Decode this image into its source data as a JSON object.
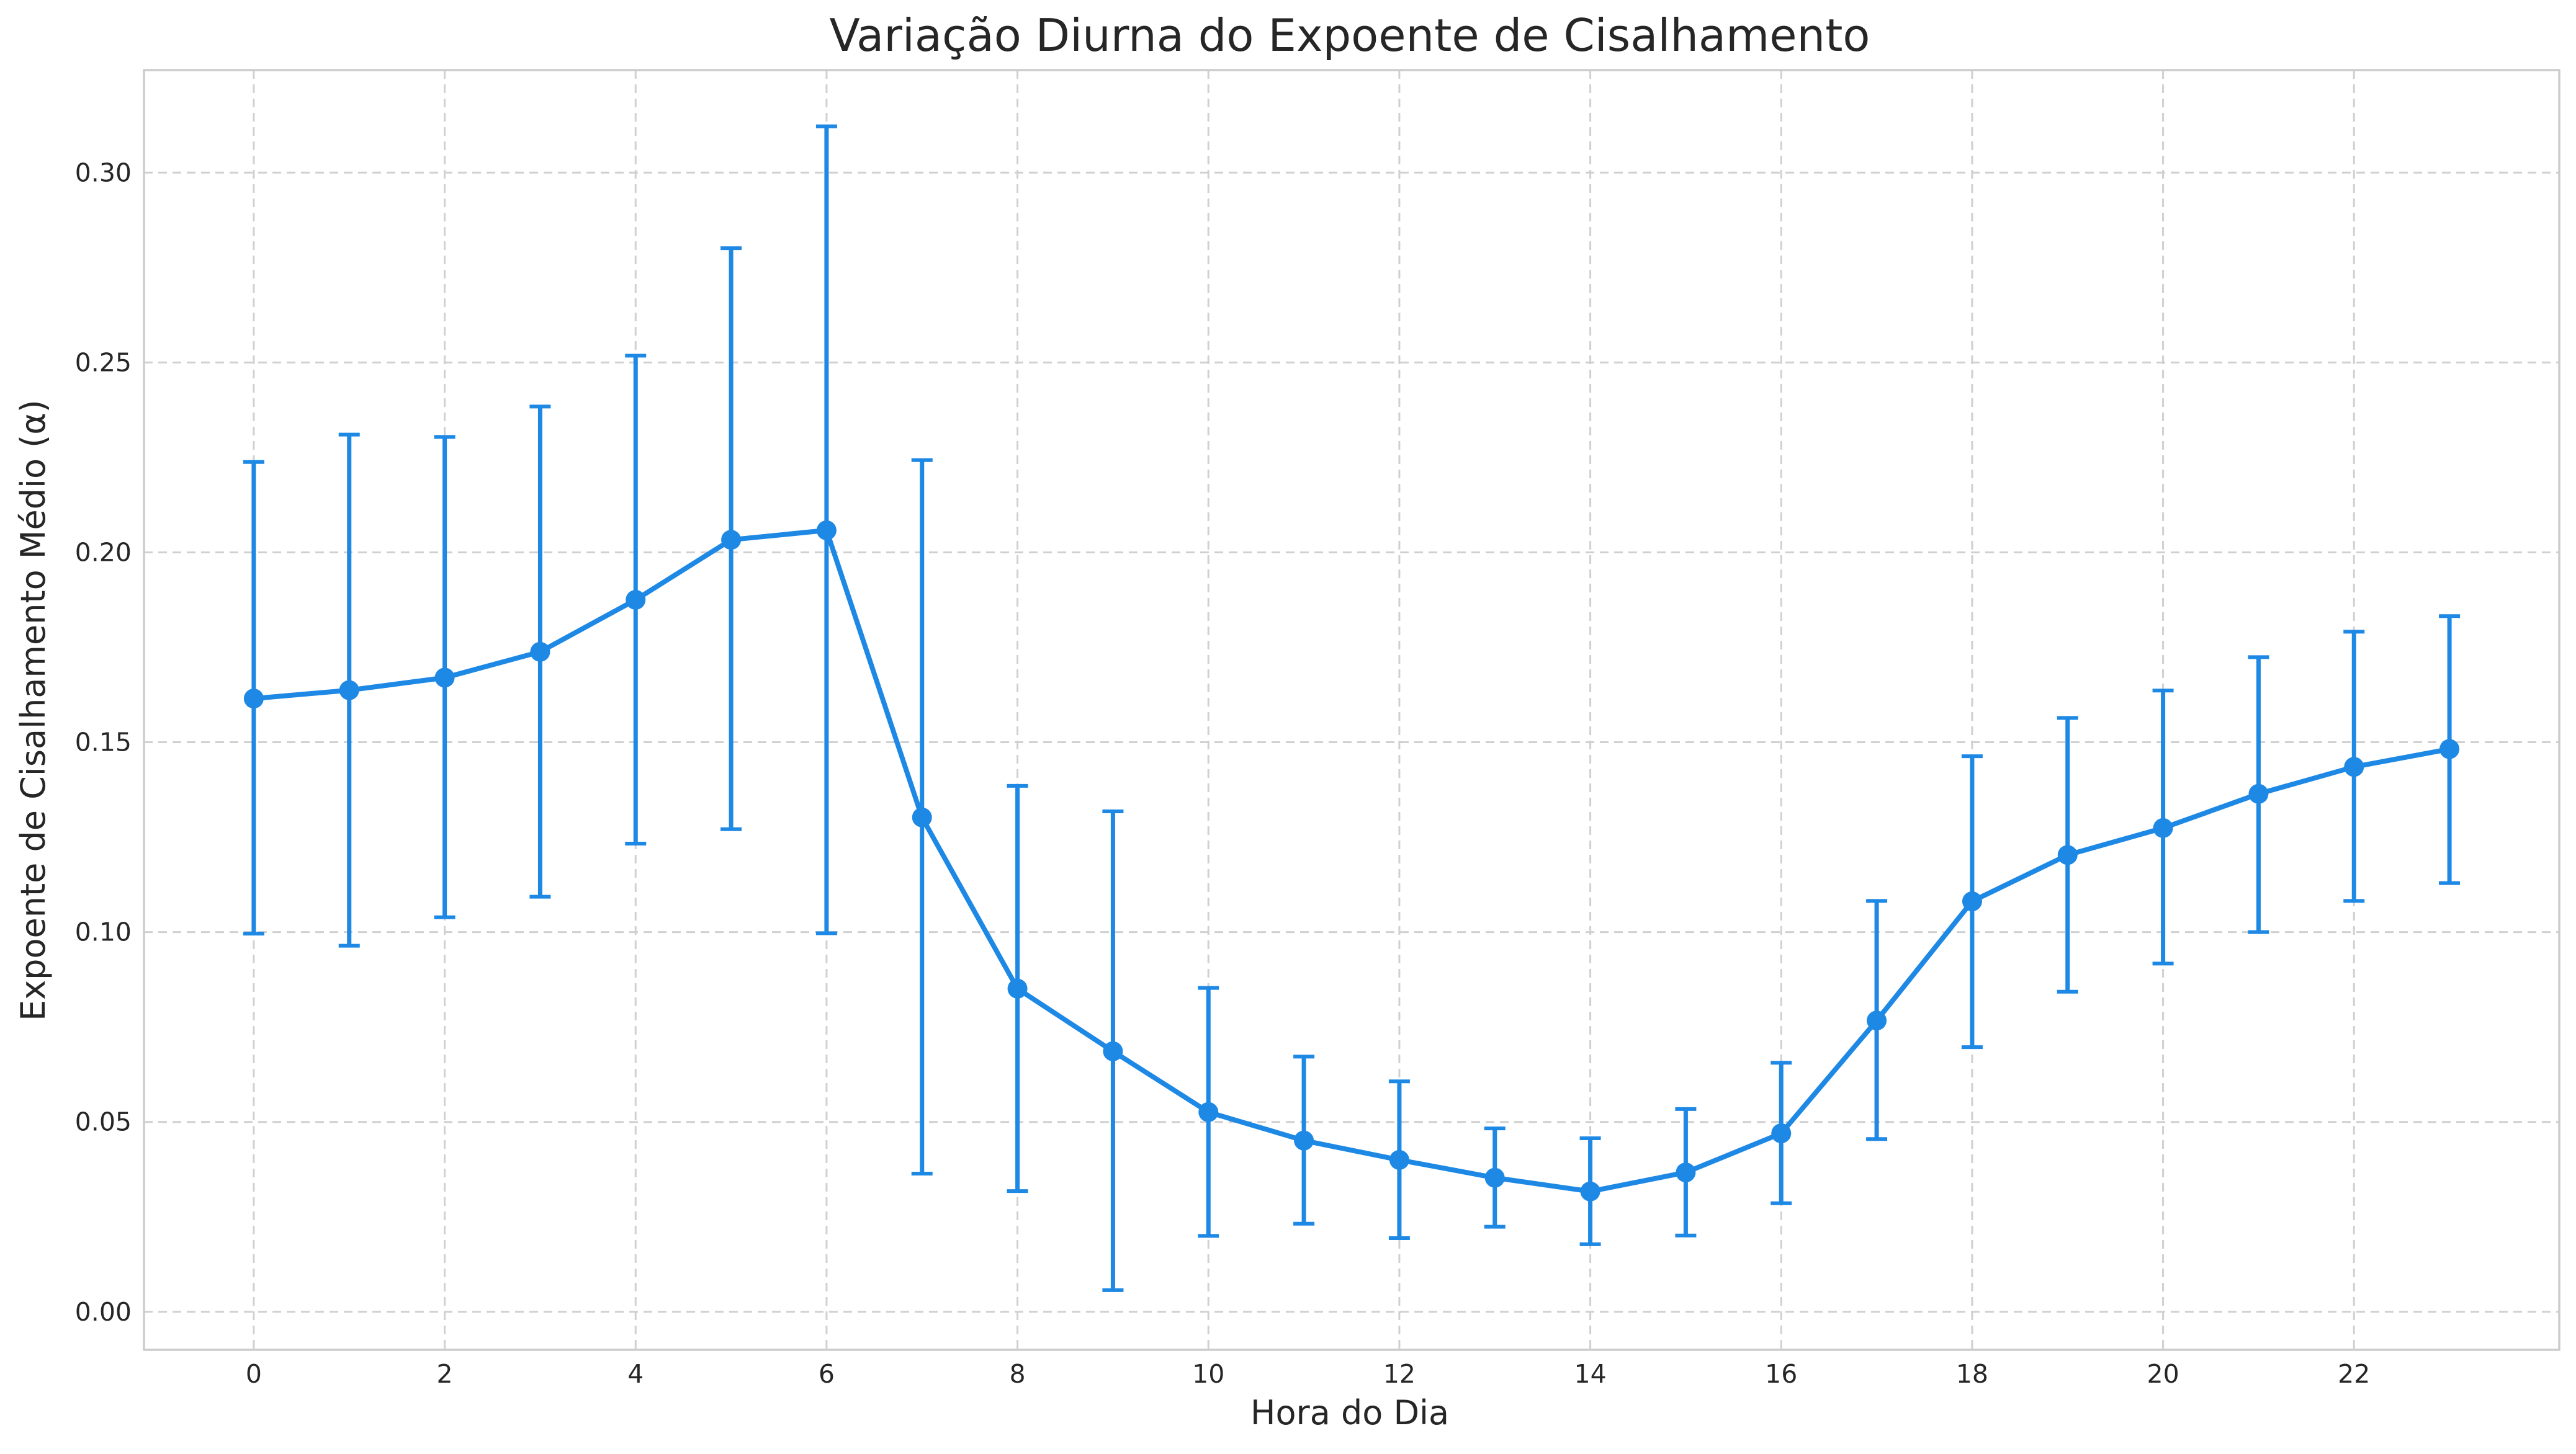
{
  "chart_data": {
    "type": "line",
    "title": "Variação Diurna do Expoente de Cisalhamento",
    "xlabel": "Hora do Dia",
    "ylabel": "Expoente de Cisalhamento Médio (α)",
    "xlim": [
      -1.15,
      24.15
    ],
    "ylim": [
      -0.01,
      0.327
    ],
    "xticks": [
      0,
      2,
      4,
      6,
      8,
      10,
      12,
      14,
      16,
      18,
      20,
      22
    ],
    "xtick_labels": [
      "0",
      "2",
      "4",
      "6",
      "8",
      "10",
      "12",
      "14",
      "16",
      "18",
      "20",
      "22"
    ],
    "yticks": [
      0.0,
      0.05,
      0.1,
      0.15,
      0.2,
      0.25,
      0.3
    ],
    "ytick_labels": [
      "0.00",
      "0.05",
      "0.10",
      "0.15",
      "0.20",
      "0.25",
      "0.30"
    ],
    "grid": true,
    "legend": "none",
    "colors": {
      "series": "#1e88e5",
      "grid": "#d0d0d0",
      "frame": "#cccccc",
      "text": "#262626"
    },
    "series": [
      {
        "x": [
          0,
          1,
          2,
          3,
          4,
          5,
          6,
          7,
          8,
          9,
          10,
          11,
          12,
          13,
          14,
          15,
          16,
          17,
          18,
          19,
          20,
          21,
          22,
          23
        ],
        "y": [
          0.1615,
          0.1637,
          0.167,
          0.1738,
          0.1875,
          0.2033,
          0.2058,
          0.1302,
          0.0851,
          0.0686,
          0.0526,
          0.0451,
          0.04,
          0.0353,
          0.0317,
          0.0367,
          0.047,
          0.0767,
          0.1081,
          0.1203,
          0.1274,
          0.1364,
          0.1435,
          0.1482
        ],
        "yerr_low": [
          0.0996,
          0.0964,
          0.1039,
          0.1093,
          0.1233,
          0.1271,
          0.0997,
          0.0364,
          0.0318,
          0.0057,
          0.02,
          0.0232,
          0.0194,
          0.0224,
          0.0178,
          0.0201,
          0.0286,
          0.0455,
          0.0697,
          0.0843,
          0.0917,
          0.1,
          0.1082,
          0.1129
        ],
        "yerr_high": [
          0.2238,
          0.231,
          0.2304,
          0.2384,
          0.2518,
          0.2801,
          0.3122,
          0.2243,
          0.1385,
          0.1318,
          0.0853,
          0.0672,
          0.0607,
          0.0483,
          0.0457,
          0.0534,
          0.0656,
          0.1082,
          0.1463,
          0.1564,
          0.1636,
          0.1724,
          0.1791,
          0.1832
        ]
      }
    ]
  }
}
